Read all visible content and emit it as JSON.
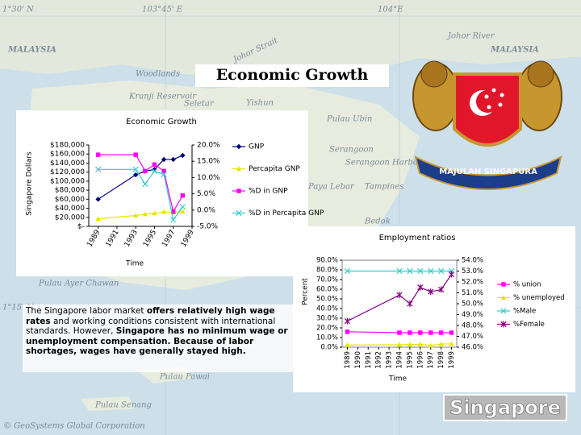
{
  "title": "Economic Growth",
  "map": {
    "labels": [
      "1°30' N",
      "103°45' E",
      "104°E",
      "MALAYSIA",
      "MALAYSIA",
      "Johor River",
      "Woodlands",
      "Johor Strait",
      "Kranji Reservoir",
      "Seletar",
      "Yishun",
      "Pulau Ubin",
      "Serangoon",
      "Serangoon Harbor",
      "Paya Lebar",
      "Tampines",
      "Bedok",
      "Pulau Ayer Chawan",
      "1°15' N",
      "Pulau Pawai",
      "Pulau Senang",
      "© GeoSystems Global Corporation"
    ],
    "badge": "Singapore"
  },
  "emblem": {
    "motto": "MAJULAH SINGAPURA"
  },
  "paragraph": [
    {
      "text": "The Singapore labor market ",
      "bold": false
    },
    {
      "text": "offers relatively high wage rates",
      "bold": true
    },
    {
      "text": " and working conditions consistent with international standards. However, ",
      "bold": false
    },
    {
      "text": "Singapore has no minimum wage or unemployment compensation. Because of labor shortages, wages have generally stayed high.",
      "bold": true
    }
  ],
  "chart_data": [
    {
      "type": "line",
      "title": "Economic Growth",
      "y_label": "Singapore Dollars",
      "x_label": "Time",
      "xlim": [
        1988,
        1999
      ],
      "xticks": [
        1989,
        1991,
        1993,
        1995,
        1997,
        1999
      ],
      "ylim": [
        0,
        180000
      ],
      "yticks": [
        {
          "value": 0,
          "label": "$-"
        },
        {
          "value": 20000,
          "label": "$20,000"
        },
        {
          "value": 40000,
          "label": "$40,000"
        },
        {
          "value": 60000,
          "label": "$60,000"
        },
        {
          "value": 80000,
          "label": "$80,000"
        },
        {
          "value": 100000,
          "label": "$100,000"
        },
        {
          "value": 120000,
          "label": "$120,000"
        },
        {
          "value": 140000,
          "label": "$140,000"
        },
        {
          "value": 160000,
          "label": "$160,000"
        },
        {
          "value": 180000,
          "label": "$180,000"
        }
      ],
      "y2lim": [
        -5,
        20
      ],
      "y2ticks": [
        {
          "value": -5,
          "label": "-5.0%"
        },
        {
          "value": 0,
          "label": "0.0%"
        },
        {
          "value": 5,
          "label": "5.0%"
        },
        {
          "value": 10,
          "label": "10.0%"
        },
        {
          "value": 15,
          "label": "15.0%"
        },
        {
          "value": 20,
          "label": "20.0%"
        }
      ],
      "x": [
        1989,
        1993,
        1994,
        1995,
        1996,
        1997,
        1998
      ],
      "series": [
        {
          "name": "GNP",
          "color": "#000080",
          "marker": "diamond",
          "values": [
            60000,
            114000,
            122000,
            126000,
            148000,
            148000,
            157000
          ]
        },
        {
          "name": "Percapita GNP",
          "color": "#e6e600",
          "marker": "triangle",
          "values": [
            17000,
            24000,
            27000,
            29000,
            32000,
            31000,
            33000
          ]
        },
        {
          "name": "%D in GNP",
          "color": "#ff00ff",
          "marker": "square",
          "axis": "y2",
          "values": [
            17,
            17,
            12,
            14,
            12,
            -0.5,
            4.5
          ]
        },
        {
          "name": "%D in Percapita GNP",
          "color": "#33cccc",
          "marker": "x",
          "axis": "y2",
          "values": [
            12.5,
            12.5,
            8,
            12,
            11,
            -3,
            1
          ]
        }
      ]
    },
    {
      "type": "line",
      "title": "Employment ratios",
      "y_label": "Percent",
      "x_label": "Time",
      "xlim": [
        1988.5,
        1999.5
      ],
      "xticks": [
        1989,
        1990,
        1991,
        1992,
        1993,
        1994,
        1995,
        1996,
        1997,
        1998,
        1999
      ],
      "ylim": [
        0,
        90
      ],
      "yticks": [
        {
          "value": 0,
          "label": "0.0%"
        },
        {
          "value": 10,
          "label": "10.0%"
        },
        {
          "value": 20,
          "label": "20.0%"
        },
        {
          "value": 30,
          "label": "30.0%"
        },
        {
          "value": 40,
          "label": "40.0%"
        },
        {
          "value": 50,
          "label": "50.0%"
        },
        {
          "value": 60,
          "label": "60.0%"
        },
        {
          "value": 70,
          "label": "70.0%"
        },
        {
          "value": 80,
          "label": "80.0%"
        },
        {
          "value": 90,
          "label": "90.0%"
        }
      ],
      "y2lim": [
        46,
        54
      ],
      "y2ticks": [
        {
          "value": 46,
          "label": "46.0%"
        },
        {
          "value": 47,
          "label": "47.0%"
        },
        {
          "value": 48,
          "label": "48.0%"
        },
        {
          "value": 49,
          "label": "49.0%"
        },
        {
          "value": 50,
          "label": "50.0%"
        },
        {
          "value": 51,
          "label": "51.0%"
        },
        {
          "value": 52,
          "label": "52.0%"
        },
        {
          "value": 53,
          "label": "53.0%"
        },
        {
          "value": 54,
          "label": "54.0%"
        }
      ],
      "x": [
        1989,
        1994,
        1995,
        1996,
        1997,
        1998,
        1999
      ],
      "series": [
        {
          "name": "% union",
          "color": "#ff00ff",
          "marker": "square",
          "values": [
            16,
            15,
            15,
            15,
            15,
            15,
            15
          ]
        },
        {
          "name": "% unemployed",
          "color": "#e6e600",
          "marker": "triangle",
          "values": [
            2.2,
            2.6,
            2.7,
            3,
            1.8,
            3.2,
            3.5
          ]
        },
        {
          "name": "%Male",
          "color": "#33cccc",
          "marker": "x",
          "axis": "y2",
          "values": [
            53,
            53,
            53,
            53,
            53,
            53,
            53
          ]
        },
        {
          "name": "%Female",
          "color": "#800080",
          "marker": "star",
          "axis": "y2",
          "values": [
            48.4,
            50.8,
            50,
            51.5,
            51.1,
            51.3,
            52.7
          ]
        }
      ]
    }
  ]
}
